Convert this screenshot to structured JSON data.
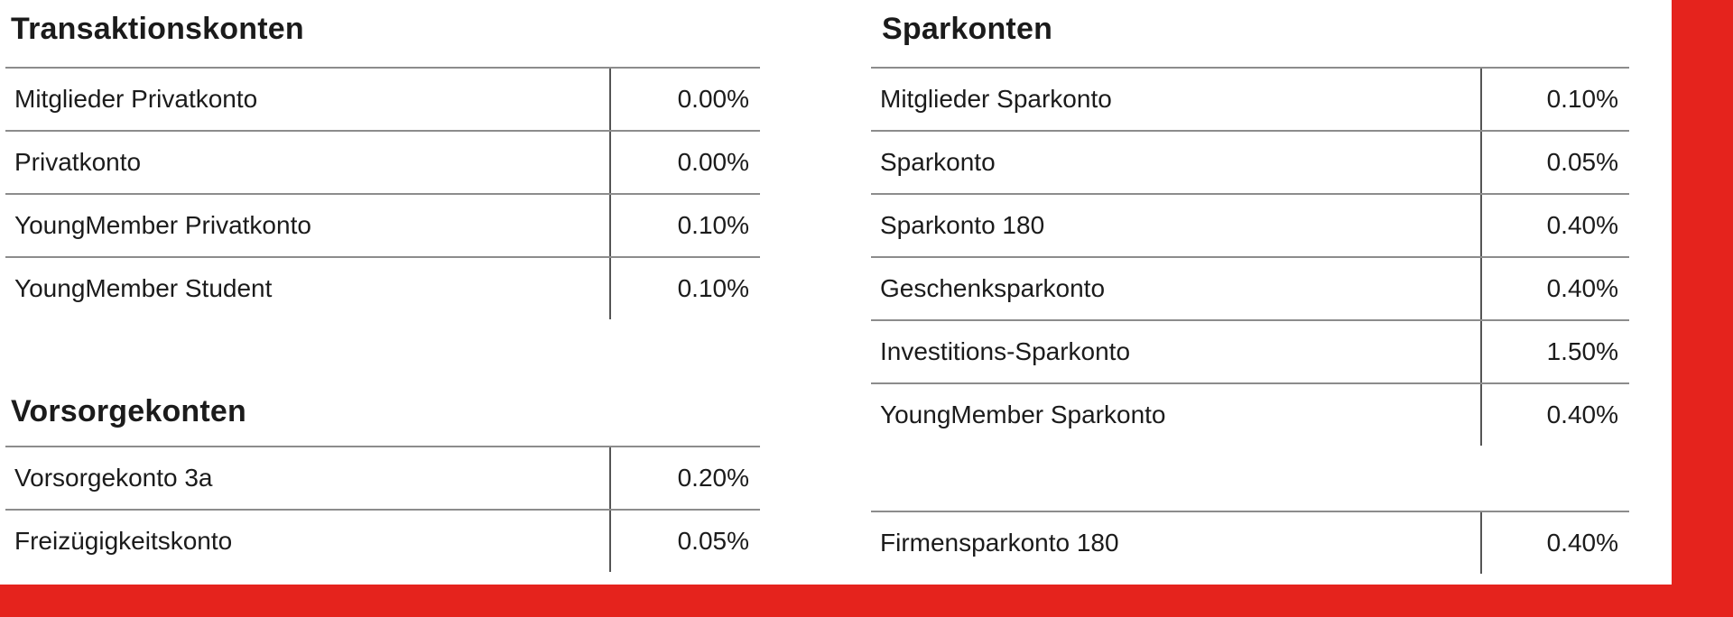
{
  "page": {
    "background": "#ffffff",
    "accent_red": "#e5231d",
    "horizontal_line_gray": "#8c8c8c",
    "vertical_line_gray": "#555555",
    "text_color": "#1b1b1b"
  },
  "sections": [
    {
      "id": "transaktionskonten",
      "title": "Transaktionskonten",
      "rows": [
        {
          "label": "Mitglieder Privatkonto",
          "value": "0.00%"
        },
        {
          "label": "Privatkonto",
          "value": "0.00%"
        },
        {
          "label": "YoungMember Privatkonto",
          "value": "0.10%"
        },
        {
          "label": "YoungMember Student",
          "value": "0.10%"
        }
      ]
    },
    {
      "id": "vorsorgekonten",
      "title": "Vorsorgekonten",
      "rows": [
        {
          "label": "Vorsorgekonto 3a",
          "value": "0.20%"
        },
        {
          "label": "Freizügigkeitskonto",
          "value": "0.05%"
        }
      ]
    },
    {
      "id": "sparkonten",
      "title": "Sparkonten",
      "rows": [
        {
          "label": "Mitglieder Sparkonto",
          "value": "0.10%"
        },
        {
          "label": "Sparkonto",
          "value": "0.05%"
        },
        {
          "label": "Sparkonto 180",
          "value": "0.40%"
        },
        {
          "label": "Geschenksparkonto",
          "value": "0.40%"
        },
        {
          "label": "Investitions-Sparkonto",
          "value": "1.50%"
        },
        {
          "label": "YoungMember Sparkonto",
          "value": "0.40%"
        }
      ]
    },
    {
      "id": "firmensparkonto",
      "title": "",
      "rows": [
        {
          "label": "Firmensparkonto 180",
          "value": "0.40%"
        }
      ]
    }
  ]
}
